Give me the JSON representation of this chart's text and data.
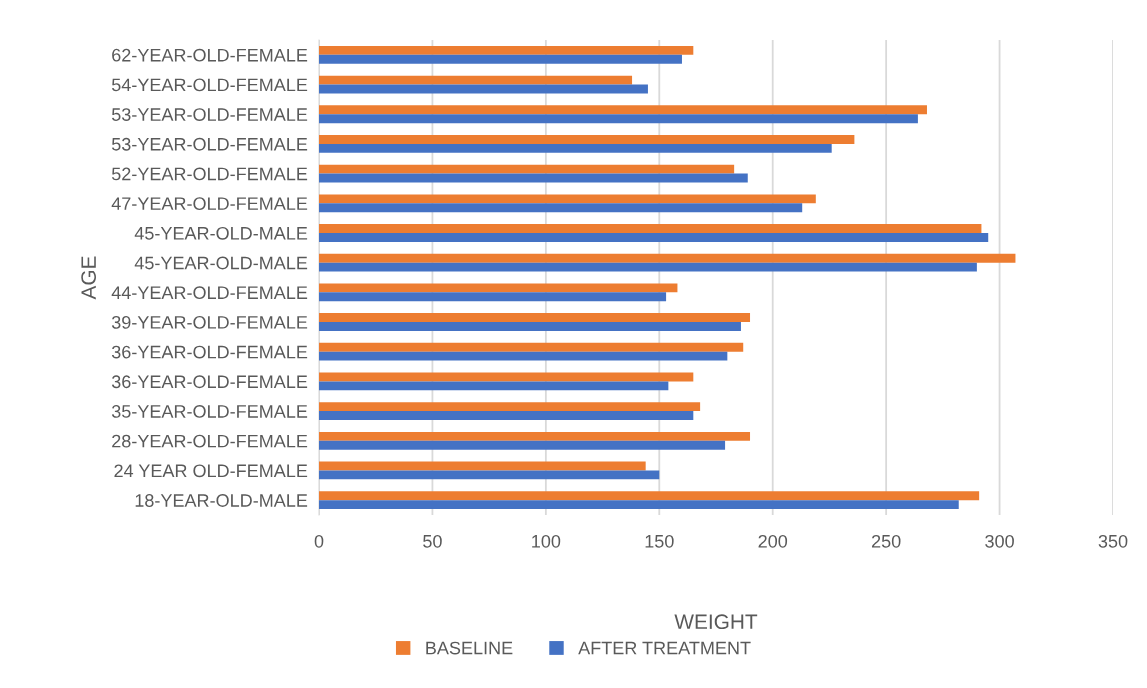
{
  "chart_data": {
    "type": "bar",
    "orientation": "horizontal",
    "xlabel": "WEIGHT",
    "ylabel": "AGE",
    "categories": [
      "62-YEAR-OLD-FEMALE",
      "54-YEAR-OLD-FEMALE",
      "53-YEAR-OLD-FEMALE",
      "53-YEAR-OLD-FEMALE",
      "52-YEAR-OLD-FEMALE",
      "47-YEAR-OLD-FEMALE",
      "45-YEAR-OLD-MALE",
      "45-YEAR-OLD-MALE",
      "44-YEAR-OLD-FEMALE",
      "39-YEAR-OLD-FEMALE",
      "36-YEAR-OLD-FEMALE",
      "36-YEAR-OLD-FEMALE",
      "35-YEAR-OLD-FEMALE",
      "28-YEAR-OLD-FEMALE",
      "24 YEAR OLD-FEMALE",
      "18-YEAR-OLD-MALE"
    ],
    "series": [
      {
        "name": "BASELINE",
        "color": "#ed7d31",
        "values": [
          165,
          138,
          268,
          236,
          183,
          219,
          292,
          307,
          158,
          190,
          187,
          165,
          168,
          190,
          144,
          291
        ]
      },
      {
        "name": "AFTER TREATMENT",
        "color": "#4472c4",
        "values": [
          160,
          145,
          264,
          226,
          189,
          213,
          295,
          290,
          153,
          186,
          180,
          154,
          165,
          179,
          150,
          282
        ]
      }
    ],
    "xlim": [
      0,
      350
    ],
    "xticks": [
      0,
      50,
      100,
      150,
      200,
      250,
      300,
      350
    ],
    "grid": "x",
    "legend": "bottom"
  }
}
